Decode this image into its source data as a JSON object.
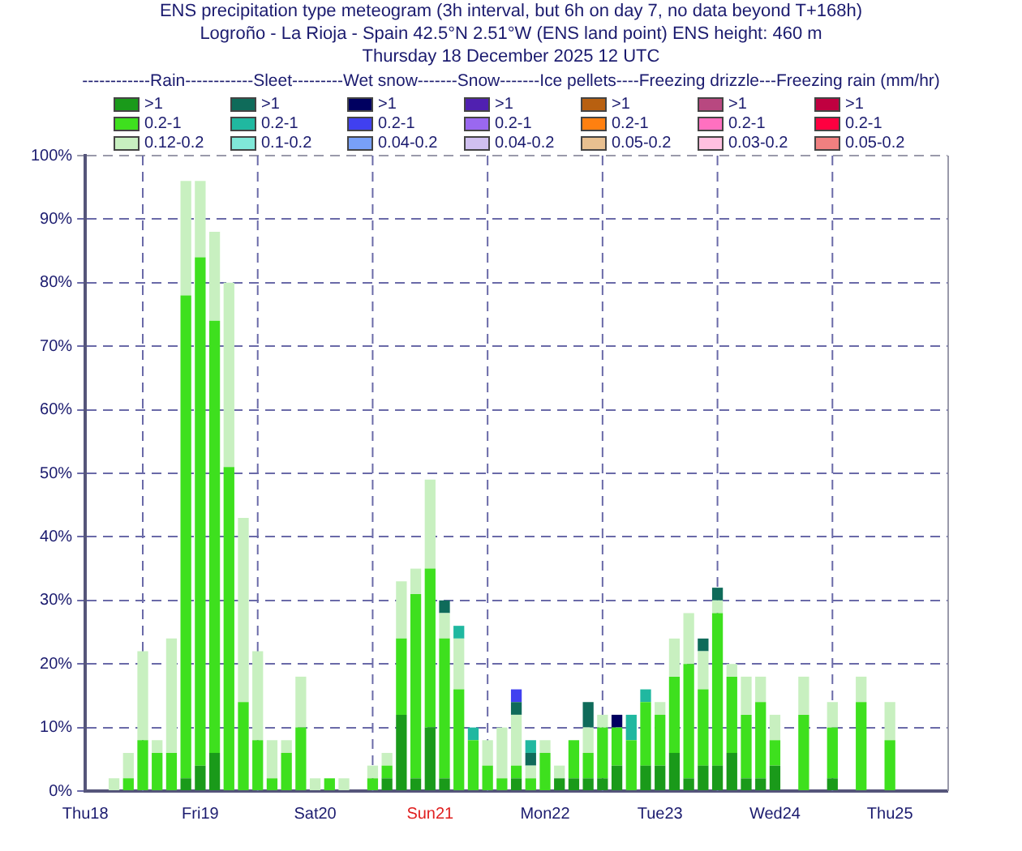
{
  "chart_data": {
    "type": "bar",
    "stacked": true,
    "title": "ENS precipitation type meteogram (3h interval, but 6h on day 7, no data beyond T+168h)",
    "subtitle": "Logroño - La Rioja - Spain 42.5°N 2.51°W (ENS land point) ENS height: 460 m\nThursday 18 December 2025 12 UTC",
    "legend_title": "------------Rain------------Sleet---------Wet snow-------Snow-------Ice pellets----Freezing drizzle---Freezing rain (mm/hr)",
    "legend": "top",
    "grid": "y",
    "x": [
      "2025-12-18T15:00",
      "2025-12-18T18:00",
      "2025-12-18T21:00",
      "2025-12-19T00:00",
      "2025-12-19T03:00",
      "2025-12-19T06:00",
      "2025-12-19T09:00",
      "2025-12-19T12:00",
      "2025-12-19T15:00",
      "2025-12-19T18:00",
      "2025-12-19T21:00",
      "2025-12-20T00:00",
      "2025-12-20T03:00",
      "2025-12-20T06:00",
      "2025-12-20T09:00",
      "2025-12-20T12:00",
      "2025-12-20T15:00",
      "2025-12-20T18:00",
      "2025-12-20T21:00",
      "2025-12-21T00:00",
      "2025-12-21T03:00",
      "2025-12-21T06:00",
      "2025-12-21T09:00",
      "2025-12-21T12:00",
      "2025-12-21T15:00",
      "2025-12-21T18:00",
      "2025-12-21T21:00",
      "2025-12-22T00:00",
      "2025-12-22T03:00",
      "2025-12-22T06:00",
      "2025-12-22T09:00",
      "2025-12-22T12:00",
      "2025-12-22T15:00",
      "2025-12-22T18:00",
      "2025-12-22T21:00",
      "2025-12-23T00:00",
      "2025-12-23T03:00",
      "2025-12-23T06:00",
      "2025-12-23T09:00",
      "2025-12-23T12:00",
      "2025-12-23T15:00",
      "2025-12-23T18:00",
      "2025-12-23T21:00",
      "2025-12-24T00:00",
      "2025-12-24T03:00",
      "2025-12-24T06:00",
      "2025-12-24T09:00",
      "2025-12-24T12:00",
      "2025-12-24T18:00",
      "2025-12-25T00:00",
      "2025-12-25T06:00",
      "2025-12-25T12:00"
    ],
    "xlim": [
      "2025-12-18T12:00",
      "2025-12-26T00:00"
    ],
    "xticks": [
      {
        "value": "2025-12-18T12:00",
        "label": "Thu18"
      },
      {
        "value": "2025-12-19T12:00",
        "label": "Fri19"
      },
      {
        "value": "2025-12-20T12:00",
        "label": "Sat20"
      },
      {
        "value": "2025-12-21T12:00",
        "label": "Sun21"
      },
      {
        "value": "2025-12-22T12:00",
        "label": "Mon22"
      },
      {
        "value": "2025-12-23T12:00",
        "label": "Tue23"
      },
      {
        "value": "2025-12-24T12:00",
        "label": "Wed24"
      },
      {
        "value": "2025-12-25T12:00",
        "label": "Thu25"
      }
    ],
    "ylim": [
      0,
      100
    ],
    "yticks": [
      {
        "value": 0,
        "label": "0%"
      },
      {
        "value": 10,
        "label": "10%"
      },
      {
        "value": 20,
        "label": "20%"
      },
      {
        "value": 30,
        "label": "30%"
      },
      {
        "value": 40,
        "label": "40%"
      },
      {
        "value": 50,
        "label": "50%"
      },
      {
        "value": 60,
        "label": "60%"
      },
      {
        "value": 70,
        "label": "70%"
      },
      {
        "value": 80,
        "label": "80%"
      },
      {
        "value": 90,
        "label": "90%"
      },
      {
        "value": 100,
        "label": "100%"
      }
    ],
    "ref_lines": [
      {
        "axis": "x",
        "value": "2025-12-19T00:00",
        "label": null
      },
      {
        "axis": "x",
        "value": "2025-12-20T00:00",
        "label": null
      },
      {
        "axis": "x",
        "value": "2025-12-21T00:00",
        "label": null
      },
      {
        "axis": "x",
        "value": "2025-12-22T00:00",
        "label": null
      },
      {
        "axis": "x",
        "value": "2025-12-23T00:00",
        "label": null
      },
      {
        "axis": "x",
        "value": "2025-12-24T00:00",
        "label": null
      },
      {
        "axis": "x",
        "value": "2025-12-25T00:00",
        "label": null
      }
    ],
    "series": [
      {
        "name": ">1",
        "color": "#1a9a1a",
        "values": [
          0,
          0,
          0,
          0,
          0,
          0,
          2,
          4,
          6,
          0,
          0,
          0,
          0,
          0,
          0,
          0,
          0,
          0,
          0,
          0,
          2,
          12,
          2,
          10,
          2,
          0,
          0,
          0,
          0,
          2,
          0,
          0,
          2,
          2,
          2,
          2,
          4,
          0,
          4,
          4,
          6,
          2,
          4,
          4,
          6,
          2,
          2,
          4,
          0,
          2,
          0,
          0
        ]
      },
      {
        "name": "0.2-1",
        "color": "#3ee01e",
        "values": [
          0,
          0,
          2,
          8,
          6,
          6,
          76,
          80,
          68,
          51,
          14,
          8,
          2,
          6,
          10,
          0,
          2,
          0,
          0,
          2,
          2,
          12,
          29,
          25,
          22,
          16,
          8,
          4,
          2,
          2,
          2,
          6,
          0,
          6,
          4,
          8,
          6,
          8,
          10,
          8,
          12,
          18,
          12,
          24,
          12,
          10,
          12,
          4,
          12,
          8,
          14,
          8
        ]
      },
      {
        "name": "0.12-0.2",
        "color": "#c8f0c0",
        "values": [
          0,
          2,
          4,
          14,
          2,
          18,
          18,
          12,
          14,
          29,
          29,
          14,
          6,
          2,
          8,
          2,
          0,
          2,
          0,
          2,
          2,
          9,
          4,
          14,
          4,
          8,
          0,
          4,
          8,
          8,
          2,
          2,
          2,
          0,
          4,
          2,
          0,
          0,
          0,
          2,
          6,
          8,
          6,
          2,
          2,
          6,
          4,
          4,
          6,
          4,
          4,
          6
        ]
      },
      {
        "name": ">1",
        "color": "#0f6b5a",
        "values": [
          0,
          0,
          0,
          0,
          0,
          0,
          0,
          0,
          0,
          0,
          0,
          0,
          0,
          0,
          0,
          0,
          0,
          0,
          0,
          0,
          0,
          0,
          0,
          0,
          2,
          0,
          0,
          0,
          0,
          2,
          2,
          0,
          0,
          0,
          4,
          0,
          0,
          0,
          0,
          0,
          0,
          0,
          2,
          2,
          0,
          0,
          0,
          0,
          0,
          0,
          0,
          0
        ]
      },
      {
        "name": "0.2-1",
        "color": "#20b8a0",
        "values": [
          0,
          0,
          0,
          0,
          0,
          0,
          0,
          0,
          0,
          0,
          0,
          0,
          0,
          0,
          0,
          0,
          0,
          0,
          0,
          0,
          0,
          0,
          0,
          0,
          0,
          2,
          2,
          0,
          0,
          0,
          2,
          0,
          0,
          0,
          0,
          0,
          0,
          4,
          2,
          0,
          0,
          0,
          0,
          0,
          0,
          0,
          0,
          0,
          0,
          0,
          0,
          0
        ]
      },
      {
        "name": "0.1-0.2",
        "color": "#80e8d8",
        "values": [
          0,
          0,
          0,
          0,
          0,
          0,
          0,
          0,
          0,
          0,
          0,
          0,
          0,
          0,
          0,
          0,
          0,
          0,
          0,
          0,
          0,
          0,
          0,
          0,
          0,
          0,
          0,
          0,
          0,
          0,
          0,
          0,
          0,
          0,
          0,
          0,
          0,
          0,
          0,
          0,
          0,
          0,
          0,
          0,
          0,
          0,
          0,
          0,
          0,
          0,
          0,
          0
        ]
      },
      {
        "name": ">1",
        "color": "#000060",
        "values": [
          0,
          0,
          0,
          0,
          0,
          0,
          0,
          0,
          0,
          0,
          0,
          0,
          0,
          0,
          0,
          0,
          0,
          0,
          0,
          0,
          0,
          0,
          0,
          0,
          0,
          0,
          0,
          0,
          0,
          0,
          0,
          0,
          0,
          0,
          0,
          0,
          2,
          0,
          0,
          0,
          0,
          0,
          0,
          0,
          0,
          0,
          0,
          0,
          0,
          0,
          0,
          0
        ]
      },
      {
        "name": "0.2-1",
        "color": "#4040f0",
        "values": [
          0,
          0,
          0,
          0,
          0,
          0,
          0,
          0,
          0,
          0,
          0,
          0,
          0,
          0,
          0,
          0,
          0,
          0,
          0,
          0,
          0,
          0,
          0,
          0,
          0,
          0,
          0,
          0,
          0,
          2,
          0,
          0,
          0,
          0,
          0,
          0,
          0,
          0,
          0,
          0,
          0,
          0,
          0,
          0,
          0,
          0,
          0,
          0,
          0,
          0,
          0,
          0
        ]
      },
      {
        "name": "0.04-0.2",
        "color": "#78a0f8",
        "values": [
          0,
          0,
          0,
          0,
          0,
          0,
          0,
          0,
          0,
          0,
          0,
          0,
          0,
          0,
          0,
          0,
          0,
          0,
          0,
          0,
          0,
          0,
          0,
          0,
          0,
          0,
          0,
          0,
          0,
          0,
          0,
          0,
          0,
          0,
          0,
          0,
          0,
          0,
          0,
          0,
          0,
          0,
          0,
          0,
          0,
          0,
          0,
          0,
          0,
          0,
          0,
          0
        ]
      },
      {
        "name": ">1",
        "color": "#5020b0",
        "values": [
          0,
          0,
          0,
          0,
          0,
          0,
          0,
          0,
          0,
          0,
          0,
          0,
          0,
          0,
          0,
          0,
          0,
          0,
          0,
          0,
          0,
          0,
          0,
          0,
          0,
          0,
          0,
          0,
          0,
          0,
          0,
          0,
          0,
          0,
          0,
          0,
          0,
          0,
          0,
          0,
          0,
          0,
          0,
          0,
          0,
          0,
          0,
          0,
          0,
          0,
          0,
          0
        ]
      },
      {
        "name": "0.2-1",
        "color": "#9a68f0",
        "values": [
          0,
          0,
          0,
          0,
          0,
          0,
          0,
          0,
          0,
          0,
          0,
          0,
          0,
          0,
          0,
          0,
          0,
          0,
          0,
          0,
          0,
          0,
          0,
          0,
          0,
          0,
          0,
          0,
          0,
          0,
          0,
          0,
          0,
          0,
          0,
          0,
          0,
          0,
          0,
          0,
          0,
          0,
          0,
          0,
          0,
          0,
          0,
          0,
          0,
          0,
          0,
          0
        ]
      },
      {
        "name": "0.04-0.2",
        "color": "#d0c0f0",
        "values": [
          0,
          0,
          0,
          0,
          0,
          0,
          0,
          0,
          0,
          0,
          0,
          0,
          0,
          0,
          0,
          0,
          0,
          0,
          0,
          0,
          0,
          0,
          0,
          0,
          0,
          0,
          0,
          0,
          0,
          0,
          0,
          0,
          0,
          0,
          0,
          0,
          0,
          0,
          0,
          0,
          0,
          0,
          0,
          0,
          0,
          0,
          0,
          0,
          0,
          0,
          0,
          0
        ]
      },
      {
        "name": ">1",
        "color": "#b86010",
        "values": [
          0,
          0,
          0,
          0,
          0,
          0,
          0,
          0,
          0,
          0,
          0,
          0,
          0,
          0,
          0,
          0,
          0,
          0,
          0,
          0,
          0,
          0,
          0,
          0,
          0,
          0,
          0,
          0,
          0,
          0,
          0,
          0,
          0,
          0,
          0,
          0,
          0,
          0,
          0,
          0,
          0,
          0,
          0,
          0,
          0,
          0,
          0,
          0,
          0,
          0,
          0,
          0
        ]
      },
      {
        "name": "0.2-1",
        "color": "#ff8010",
        "values": [
          0,
          0,
          0,
          0,
          0,
          0,
          0,
          0,
          0,
          0,
          0,
          0,
          0,
          0,
          0,
          0,
          0,
          0,
          0,
          0,
          0,
          0,
          0,
          0,
          0,
          0,
          0,
          0,
          0,
          0,
          0,
          0,
          0,
          0,
          0,
          0,
          0,
          0,
          0,
          0,
          0,
          0,
          0,
          0,
          0,
          0,
          0,
          0,
          0,
          0,
          0,
          0
        ]
      },
      {
        "name": "0.05-0.2",
        "color": "#e8c090",
        "values": [
          0,
          0,
          0,
          0,
          0,
          0,
          0,
          0,
          0,
          0,
          0,
          0,
          0,
          0,
          0,
          0,
          0,
          0,
          0,
          0,
          0,
          0,
          0,
          0,
          0,
          0,
          0,
          0,
          0,
          0,
          0,
          0,
          0,
          0,
          0,
          0,
          0,
          0,
          0,
          0,
          0,
          0,
          0,
          0,
          0,
          0,
          0,
          0,
          0,
          0,
          0,
          0
        ]
      },
      {
        "name": ">1",
        "color": "#b84880",
        "values": [
          0,
          0,
          0,
          0,
          0,
          0,
          0,
          0,
          0,
          0,
          0,
          0,
          0,
          0,
          0,
          0,
          0,
          0,
          0,
          0,
          0,
          0,
          0,
          0,
          0,
          0,
          0,
          0,
          0,
          0,
          0,
          0,
          0,
          0,
          0,
          0,
          0,
          0,
          0,
          0,
          0,
          0,
          0,
          0,
          0,
          0,
          0,
          0,
          0,
          0,
          0,
          0
        ]
      },
      {
        "name": "0.2-1",
        "color": "#ff70c0",
        "values": [
          0,
          0,
          0,
          0,
          0,
          0,
          0,
          0,
          0,
          0,
          0,
          0,
          0,
          0,
          0,
          0,
          0,
          0,
          0,
          0,
          0,
          0,
          0,
          0,
          0,
          0,
          0,
          0,
          0,
          0,
          0,
          0,
          0,
          0,
          0,
          0,
          0,
          0,
          0,
          0,
          0,
          0,
          0,
          0,
          0,
          0,
          0,
          0,
          0,
          0,
          0,
          0
        ]
      },
      {
        "name": "0.03-0.2",
        "color": "#ffc0e0",
        "values": [
          0,
          0,
          0,
          0,
          0,
          0,
          0,
          0,
          0,
          0,
          0,
          0,
          0,
          0,
          0,
          0,
          0,
          0,
          0,
          0,
          0,
          0,
          0,
          0,
          0,
          0,
          0,
          0,
          0,
          0,
          0,
          0,
          0,
          0,
          0,
          0,
          0,
          0,
          0,
          0,
          0,
          0,
          0,
          0,
          0,
          0,
          0,
          0,
          0,
          0,
          0,
          0
        ]
      },
      {
        "name": ">1",
        "color": "#c00040",
        "values": [
          0,
          0,
          0,
          0,
          0,
          0,
          0,
          0,
          0,
          0,
          0,
          0,
          0,
          0,
          0,
          0,
          0,
          0,
          0,
          0,
          0,
          0,
          0,
          0,
          0,
          0,
          0,
          0,
          0,
          0,
          0,
          0,
          0,
          0,
          0,
          0,
          0,
          0,
          0,
          0,
          0,
          0,
          0,
          0,
          0,
          0,
          0,
          0,
          0,
          0,
          0,
          0
        ]
      },
      {
        "name": "0.2-1",
        "color": "#ff0040",
        "values": [
          0,
          0,
          0,
          0,
          0,
          0,
          0,
          0,
          0,
          0,
          0,
          0,
          0,
          0,
          0,
          0,
          0,
          0,
          0,
          0,
          0,
          0,
          0,
          0,
          0,
          0,
          0,
          0,
          0,
          0,
          0,
          0,
          0,
          0,
          0,
          0,
          0,
          0,
          0,
          0,
          0,
          0,
          0,
          0,
          0,
          0,
          0,
          0,
          0,
          0,
          0,
          0
        ]
      },
      {
        "name": "0.05-0.2",
        "color": "#f08080",
        "values": [
          0,
          0,
          0,
          0,
          0,
          0,
          0,
          0,
          0,
          0,
          0,
          0,
          0,
          0,
          0,
          0,
          0,
          0,
          0,
          0,
          0,
          0,
          0,
          0,
          0,
          0,
          0,
          0,
          0,
          0,
          0,
          0,
          0,
          0,
          0,
          0,
          0,
          0,
          0,
          0,
          0,
          0,
          0,
          0,
          0,
          0,
          0,
          0,
          0,
          0,
          0,
          0
        ]
      }
    ]
  }
}
